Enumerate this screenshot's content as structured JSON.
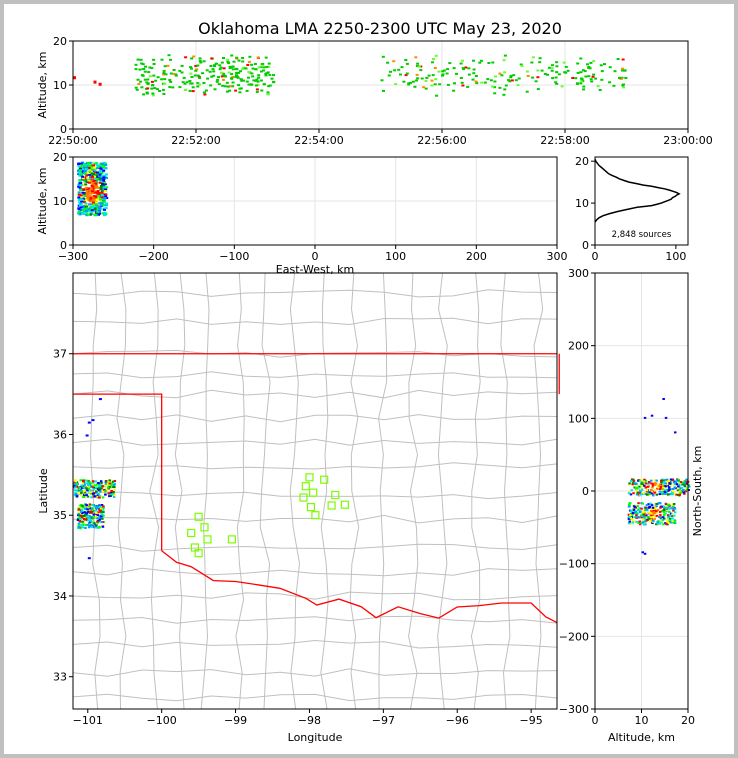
{
  "title": "Oklahoma LMA 2250-2300 UTC May 23, 2020",
  "colors": {
    "axis": "#000000",
    "grid": "#e6e6e6",
    "border": "#ff0000",
    "county": "#c0c0c0",
    "station": "#7cfc00",
    "bg": "#ffffff",
    "frame": "#c0c0c0"
  },
  "chart_data": [
    {
      "id": "time_height",
      "type": "scatter",
      "ylabel": "Altitude, km",
      "xlabel": "",
      "xlim": [
        "22:50:00",
        "23:00:00"
      ],
      "ylim": [
        0,
        20
      ],
      "xticks": [
        "22:50:00",
        "22:52:00",
        "22:54:00",
        "22:56:00",
        "22:58:00",
        "23:00:00"
      ],
      "yticks": [
        "0",
        "10",
        "20"
      ],
      "source_time_windows": [
        [
          "22:51:00",
          "22:53:15"
        ],
        [
          "22:55:00",
          "22:59:00"
        ]
      ],
      "altitude_range_km": [
        7,
        17
      ]
    },
    {
      "id": "ew_height",
      "type": "scatter",
      "xlabel": "East-West, km",
      "ylabel": "Altitude, km",
      "xlim": [
        -300,
        300
      ],
      "ylim": [
        0,
        20
      ],
      "xticks": [
        "−300",
        "−200",
        "−100",
        "0",
        "100",
        "200",
        "300"
      ],
      "yticks": [
        "0",
        "10",
        "20"
      ],
      "source_cluster": {
        "x_range": [
          -295,
          -260
        ],
        "alt_range": [
          7,
          19
        ]
      }
    },
    {
      "id": "altitude_histogram",
      "type": "line",
      "annotation": "2,848 sources",
      "xlim": [
        0,
        115
      ],
      "ylim": [
        0,
        21
      ],
      "xticks": [
        "0",
        "100"
      ],
      "yticks": [
        "0",
        "10",
        "20"
      ],
      "x": [
        0,
        2,
        5,
        10,
        18,
        28,
        40,
        52,
        62,
        70,
        76,
        82,
        86,
        90,
        94,
        96,
        99,
        101,
        104,
        101,
        97,
        92,
        86,
        78,
        70,
        60,
        50,
        42,
        36,
        30,
        26,
        21,
        17,
        14,
        11,
        8,
        5,
        3,
        1,
        0
      ],
      "y": [
        5.5,
        6.0,
        6.5,
        7.0,
        7.5,
        8.0,
        8.5,
        9.0,
        9.2,
        9.4,
        9.7,
        10.0,
        10.3,
        10.6,
        10.9,
        11.3,
        11.6,
        11.9,
        12.2,
        12.5,
        12.8,
        13.1,
        13.4,
        13.7,
        14.0,
        14.3,
        14.7,
        15.0,
        15.4,
        15.8,
        16.2,
        16.6,
        17.0,
        17.5,
        18.0,
        18.5,
        19.0,
        19.5,
        20.0,
        20.5
      ]
    },
    {
      "id": "plan_view",
      "type": "scatter",
      "xlabel": "Longitude",
      "ylabel": "Latitude",
      "xlim": [
        -101.2,
        -94.65
      ],
      "ylim": [
        32.6,
        38.0
      ],
      "xticks": [
        "−101",
        "−100",
        "−99",
        "−98",
        "−97",
        "−96",
        "−95"
      ],
      "yticks": [
        "33",
        "34",
        "35",
        "36",
        "37"
      ],
      "stations": [
        [
          -99.6,
          34.78
        ],
        [
          -99.5,
          34.98
        ],
        [
          -99.42,
          34.85
        ],
        [
          -99.38,
          34.7
        ],
        [
          -99.55,
          34.6
        ],
        [
          -99.5,
          34.53
        ],
        [
          -99.05,
          34.7
        ],
        [
          -98.0,
          35.47
        ],
        [
          -98.05,
          35.36
        ],
        [
          -97.8,
          35.44
        ],
        [
          -98.08,
          35.22
        ],
        [
          -97.95,
          35.28
        ],
        [
          -97.65,
          35.25
        ],
        [
          -97.7,
          35.12
        ],
        [
          -97.52,
          35.13
        ],
        [
          -97.98,
          35.1
        ],
        [
          -97.92,
          35.0
        ]
      ],
      "source_clusters": [
        {
          "lon": [
            -101.2,
            -100.65
          ],
          "lat": [
            35.23,
            35.45
          ]
        },
        {
          "lon": [
            -101.15,
            -100.8
          ],
          "lat": [
            34.85,
            35.15
          ]
        }
      ],
      "scattered_sources": [
        [
          -101.0,
          36.16
        ],
        [
          -100.95,
          36.19
        ],
        [
          -101.03,
          36.0
        ],
        [
          -100.85,
          36.45
        ],
        [
          -101.0,
          34.48
        ]
      ]
    },
    {
      "id": "ns_altitude",
      "type": "scatter",
      "xlabel": "Altitude, km",
      "ylabel": "North-South, km",
      "xlim": [
        0,
        20
      ],
      "ylim": [
        -300,
        300
      ],
      "xticks": [
        "0",
        "10",
        "20"
      ],
      "yticks": [
        "−300",
        "−200",
        "−100",
        "0",
        "100",
        "200",
        "300"
      ],
      "source_clusters": [
        {
          "alt": [
            7,
            20
          ],
          "ns": [
            -5,
            18
          ]
        },
        {
          "alt": [
            7,
            17
          ],
          "ns": [
            -45,
            -15
          ]
        }
      ],
      "scattered_sources": [
        [
          12,
          105
        ],
        [
          10.5,
          102
        ],
        [
          15,
          102
        ],
        [
          14.5,
          128
        ],
        [
          10,
          -83
        ],
        [
          10.5,
          -85
        ],
        [
          17,
          82
        ]
      ]
    }
  ]
}
